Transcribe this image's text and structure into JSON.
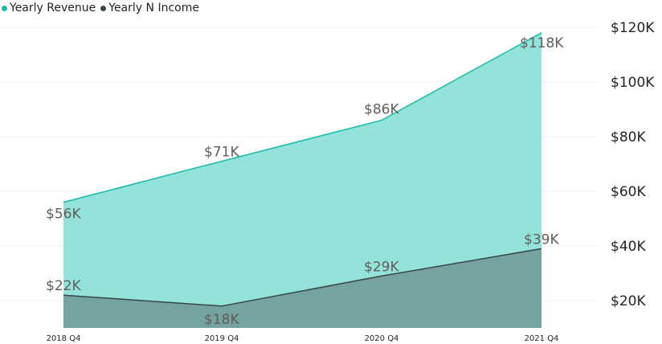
{
  "colors": {
    "revenue": "#1ab9a8",
    "income": "#374649"
  },
  "legend": [
    {
      "label": "Yearly Revenue",
      "color": "#1ab9a8"
    },
    {
      "label": "Yearly N Income",
      "color": "#374649"
    }
  ],
  "chart_data": {
    "type": "area",
    "categories": [
      "2018 Q4",
      "2019 Q4",
      "2020 Q4",
      "2021 Q4"
    ],
    "series": [
      {
        "name": "Yearly Revenue",
        "values": [
          56,
          71,
          86,
          118
        ],
        "labels": [
          "$56K",
          "$71K",
          "$86K",
          "$118K"
        ]
      },
      {
        "name": "Yearly N Income",
        "values": [
          22,
          18,
          29,
          39
        ],
        "labels": [
          "$22K",
          "$18K",
          "$29K",
          "$39K"
        ]
      }
    ],
    "yaxis": {
      "position": "right",
      "ylim": [
        10,
        120
      ],
      "ticks": [
        20,
        40,
        60,
        80,
        100,
        120
      ],
      "tick_labels": [
        "$20K",
        "$40K",
        "$60K",
        "$80K",
        "$100K",
        "$120K"
      ]
    },
    "grid": true,
    "legend_position": "top-left"
  }
}
